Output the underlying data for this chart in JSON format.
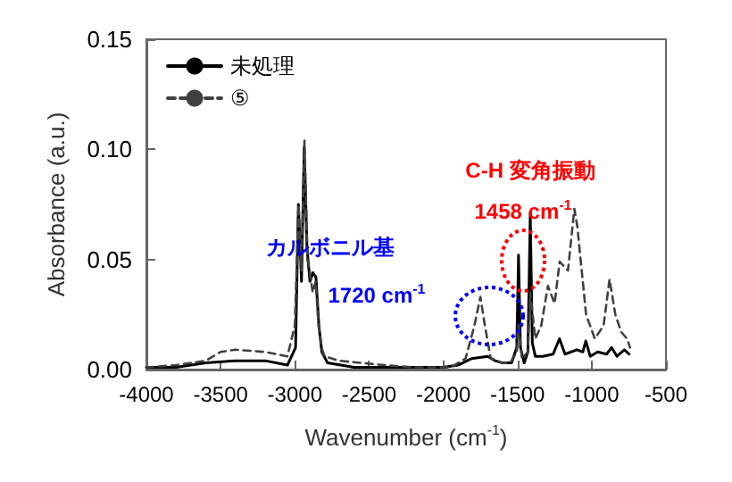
{
  "chart_data": {
    "type": "line",
    "xlabel": "Wavenumber (cm$^{-1}$)",
    "ylabel": "Absorbance (a.u.)",
    "xlim": [
      -4000,
      -500
    ],
    "xticks": [
      -4000,
      -3500,
      -3000,
      -2500,
      -2000,
      -1500,
      -1000,
      -500
    ],
    "ylim": [
      0,
      0.15
    ],
    "yticks": [
      {
        "value": 0,
        "label": "0.00"
      },
      {
        "value": 0.05,
        "label": "0.05"
      },
      {
        "value": 0.1,
        "label": "0.10"
      },
      {
        "value": 0.15,
        "label": "0.15"
      }
    ],
    "grid": false,
    "legend": "top left",
    "marker": "none",
    "annotations": [
      "C-H 変角振動",
      "1458 cm$^{-1}$",
      "カルボニル基",
      "1720 cm$^{-1}$"
    ],
    "series": [
      {
        "name": "未処理",
        "color": "#000000",
        "line_style": "solid",
        "x": [
          -4000,
          -3800,
          -3600,
          -3400,
          -3200,
          -3050,
          -2995,
          -2976,
          -2955,
          -2937,
          -2918,
          -2898,
          -2878,
          -2858,
          -2838,
          -2818,
          -2780,
          -2600,
          -2300,
          -2000,
          -1900,
          -1809,
          -1700,
          -1651,
          -1600,
          -1540,
          -1505,
          -1493,
          -1480,
          -1455,
          -1430,
          -1414,
          -1400,
          -1380,
          -1330,
          -1260,
          -1217,
          -1180,
          -1100,
          -1060,
          -1040,
          -1010,
          -960,
          -900,
          -866,
          -830,
          -780,
          -748
        ],
        "values": [
          0.001,
          0.001,
          0.003,
          0.004,
          0.004,
          0.002,
          0.01,
          0.075,
          0.04,
          0.101,
          0.055,
          0.04,
          0.044,
          0.042,
          0.02,
          0.008,
          0.003,
          0.001,
          0.001,
          0.001,
          0.002,
          0.005,
          0.006,
          0.004,
          0.003,
          0.003,
          0.01,
          0.052,
          0.01,
          0.003,
          0.008,
          0.071,
          0.012,
          0.006,
          0.006,
          0.007,
          0.014,
          0.007,
          0.009,
          0.008,
          0.013,
          0.006,
          0.008,
          0.007,
          0.01,
          0.006,
          0.009,
          0.007
        ]
      },
      {
        "name": "⑤",
        "color": "#404040",
        "line_style": "dashed",
        "x": [
          -4000,
          -3800,
          -3600,
          -3500,
          -3400,
          -3200,
          -3050,
          -3000,
          -2975,
          -2955,
          -2935,
          -2915,
          -2900,
          -2880,
          -2860,
          -2840,
          -2820,
          -2800,
          -2700,
          -2400,
          -2200,
          -1950,
          -1850,
          -1790,
          -1750,
          -1720,
          -1680,
          -1600,
          -1550,
          -1505,
          -1493,
          -1470,
          -1430,
          -1414,
          -1380,
          -1340,
          -1295,
          -1250,
          -1216,
          -1160,
          -1117,
          -1097,
          -1038,
          -979,
          -920,
          -880,
          -841,
          -801,
          -762,
          -742
        ],
        "values": [
          0.001,
          0.002,
          0.004,
          0.008,
          0.009,
          0.008,
          0.006,
          0.02,
          0.075,
          0.045,
          0.104,
          0.05,
          0.045,
          0.035,
          0.04,
          0.02,
          0.01,
          0.006,
          0.004,
          0.002,
          0.001,
          0.001,
          0.005,
          0.02,
          0.033,
          0.02,
          0.005,
          0.003,
          0.003,
          0.008,
          0.02,
          0.005,
          0.008,
          0.035,
          0.014,
          0.02,
          0.038,
          0.03,
          0.049,
          0.045,
          0.073,
          0.065,
          0.025,
          0.014,
          0.02,
          0.041,
          0.025,
          0.017,
          0.014,
          0.01
        ]
      }
    ]
  }
}
